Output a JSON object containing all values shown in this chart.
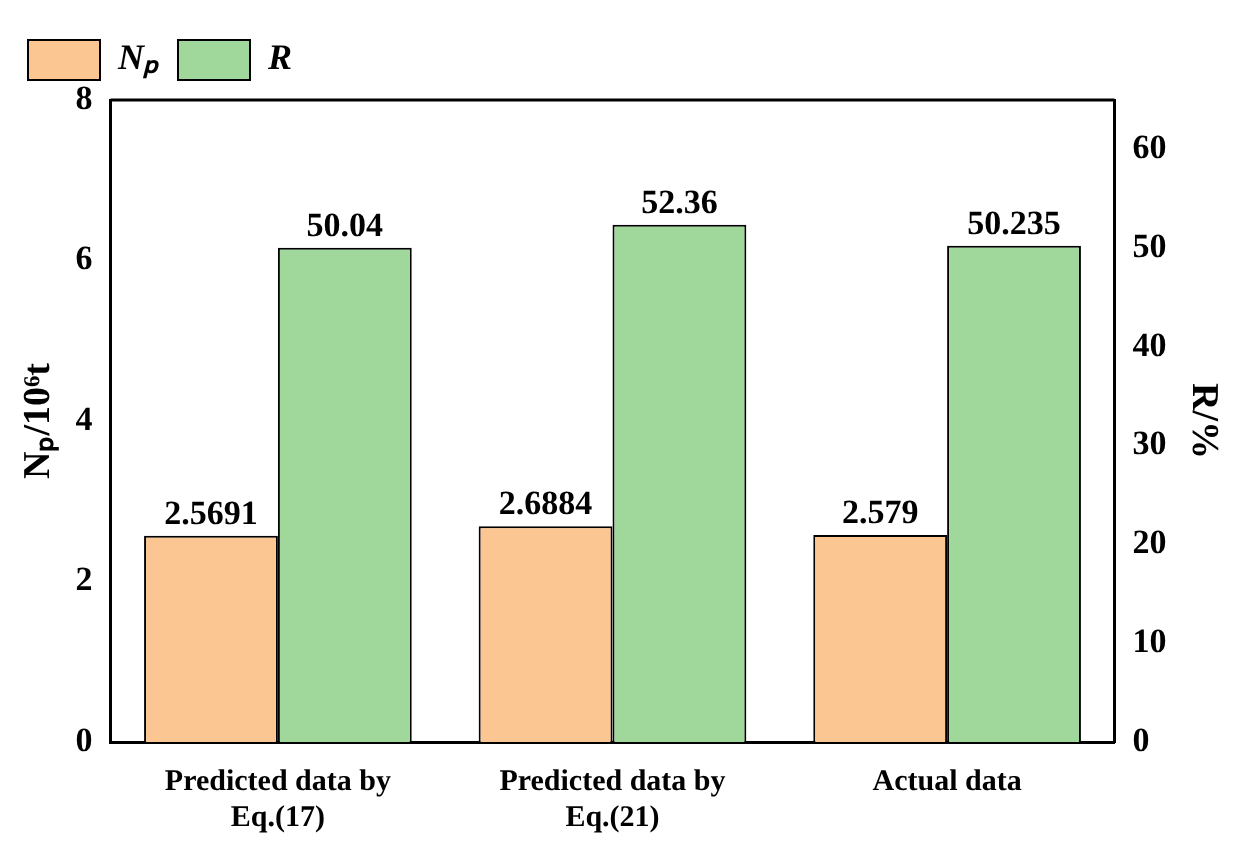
{
  "chart_data": {
    "type": "bar",
    "categories": [
      "Predicted data by Eq.(17)",
      "Predicted data by Eq.(21)",
      "Actual data"
    ],
    "ylabel": "Nₚ/10⁶t",
    "y2label": "R/%",
    "series": [
      {
        "name": "Nₚ",
        "color": "#fbc691",
        "values": [
          2.5691,
          2.6884,
          2.579
        ]
      },
      {
        "name": "R",
        "color": "#9fd89a",
        "values": [
          50.04,
          52.36,
          50.235
        ],
        "axis": "y2"
      }
    ],
    "ylim": [
      0,
      8
    ],
    "yticks": [
      0,
      2,
      4,
      6,
      8
    ],
    "y2lim": [
      0,
      65
    ],
    "y2ticks": [
      0,
      10,
      20,
      30,
      40,
      50,
      60
    ],
    "data_labels": true,
    "legend": "top left",
    "grid": false
  }
}
